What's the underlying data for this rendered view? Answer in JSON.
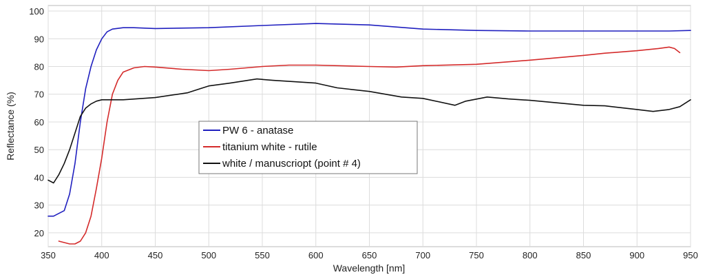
{
  "chart_data": {
    "type": "line",
    "title": "",
    "xlabel": "Wavelength [nm]",
    "ylabel": "Reflectance (%)",
    "xlim": [
      350,
      950
    ],
    "ylim": [
      15,
      102
    ],
    "xticks": [
      350,
      400,
      450,
      500,
      550,
      600,
      650,
      700,
      750,
      800,
      850,
      900,
      950
    ],
    "yticks": [
      20,
      30,
      40,
      50,
      60,
      70,
      80,
      90,
      100
    ],
    "grid": true,
    "legend_position": "center-left",
    "series": [
      {
        "name": "PW 6 - anatase",
        "color": "#1f1fbf",
        "x": [
          350,
          355,
          360,
          365,
          370,
          375,
          380,
          385,
          390,
          395,
          400,
          405,
          410,
          420,
          430,
          450,
          500,
          550,
          600,
          650,
          700,
          750,
          800,
          850,
          900,
          930,
          950
        ],
        "y": [
          26,
          26,
          27,
          28,
          34,
          45,
          60,
          72,
          80,
          86,
          90,
          92.5,
          93.5,
          94,
          94,
          93.7,
          94,
          94.8,
          95.5,
          95,
          93.5,
          93,
          92.8,
          92.8,
          92.8,
          92.8,
          93
        ]
      },
      {
        "name": "titanium white - rutile",
        "color": "#d42a2a",
        "x": [
          360,
          365,
          370,
          375,
          380,
          385,
          390,
          395,
          400,
          405,
          410,
          415,
          420,
          430,
          440,
          450,
          475,
          500,
          520,
          550,
          575,
          600,
          650,
          675,
          700,
          750,
          800,
          850,
          870,
          900,
          920,
          930,
          935,
          940
        ],
        "y": [
          17,
          16.5,
          16,
          16,
          17,
          20,
          26,
          36,
          47,
          60,
          70,
          75,
          78,
          79.5,
          80,
          79.8,
          79,
          78.5,
          79,
          80,
          80.5,
          80.5,
          80,
          79.8,
          80.3,
          80.8,
          82.3,
          84,
          84.8,
          85.7,
          86.5,
          87,
          86.5,
          85
        ]
      },
      {
        "name": "white / manuscriopt (point # 4)",
        "color": "#111111",
        "x": [
          350,
          355,
          360,
          365,
          370,
          375,
          380,
          385,
          390,
          395,
          400,
          420,
          450,
          480,
          500,
          520,
          545,
          560,
          580,
          600,
          620,
          650,
          680,
          700,
          730,
          740,
          760,
          780,
          800,
          850,
          870,
          900,
          915,
          930,
          940,
          950
        ],
        "y": [
          39,
          38,
          41,
          45,
          50,
          56,
          62,
          65,
          66.5,
          67.5,
          68,
          68,
          68.8,
          70.5,
          73,
          74,
          75.5,
          75,
          74.5,
          74,
          72.3,
          71,
          69,
          68.5,
          66,
          67.5,
          69,
          68.3,
          67.8,
          66,
          65.8,
          64.5,
          63.8,
          64.5,
          65.5,
          68
        ]
      }
    ]
  }
}
